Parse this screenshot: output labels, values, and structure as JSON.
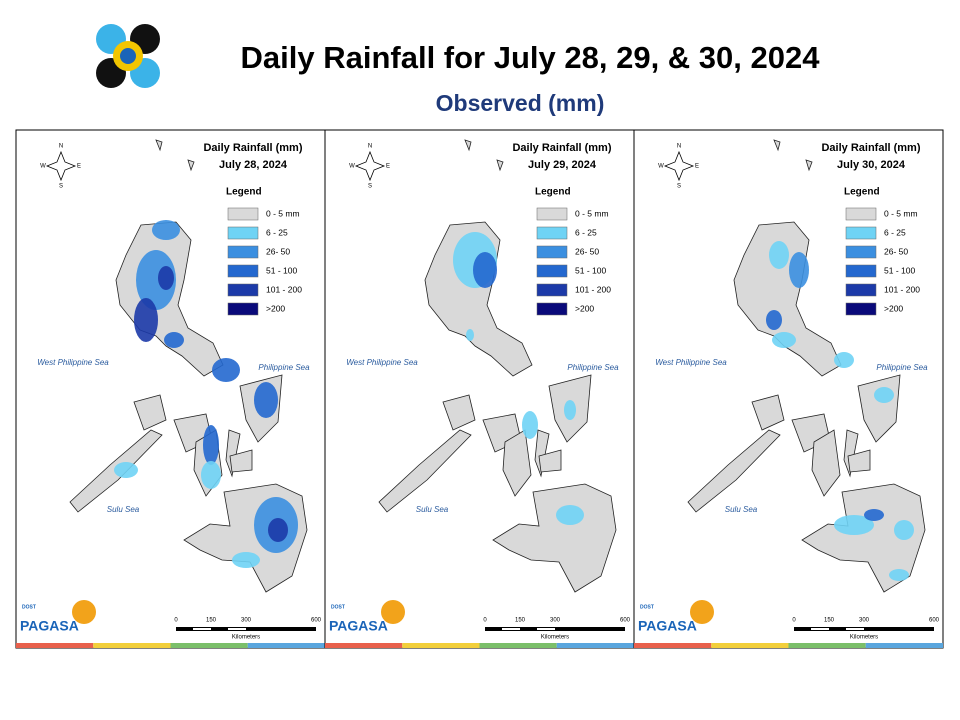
{
  "header": {
    "title": "Daily Rainfall for July 28, 29, & 30, 2024",
    "subtitle": "Observed (mm)"
  },
  "panels": [
    {
      "title": "Daily Rainfall (mm)",
      "date": "July 28, 2024"
    },
    {
      "title": "Daily Rainfall (mm)",
      "date": "July 29, 2024"
    },
    {
      "title": "Daily Rainfall (mm)",
      "date": "July 30, 2024"
    }
  ],
  "legend_title": "Legend",
  "legend": [
    {
      "label": "0 - 5 mm",
      "color": "#d9d9d9"
    },
    {
      "label": "6 - 25",
      "color": "#6fd3f5"
    },
    {
      "label": "26- 50",
      "color": "#3b8fe0"
    },
    {
      "label": "51 - 100",
      "color": "#2468cf"
    },
    {
      "label": "101 - 200",
      "color": "#1c3aa8"
    },
    {
      "label": ">200",
      "color": "#0a0a7a"
    }
  ],
  "seas": [
    "West Philippine Sea",
    "Philippine Sea",
    "Sulu Sea"
  ],
  "compass": [
    "N",
    "E",
    "S",
    "W"
  ],
  "scale": [
    "0",
    "150",
    "300",
    "600"
  ],
  "scale_unit": "Kilometers",
  "logo": {
    "agency": "PAGASA",
    "dept": "DOST"
  }
}
